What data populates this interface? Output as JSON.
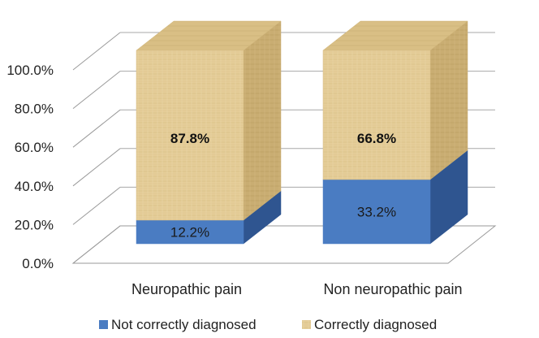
{
  "chart_data": {
    "type": "bar",
    "stacked": true,
    "three_d": true,
    "categories": [
      "Neuropathic pain",
      "Non neuropathic pain"
    ],
    "series": [
      {
        "name": "Not correctly diagnosed",
        "values": [
          12.2,
          33.2
        ],
        "labels": [
          "12.2%",
          "33.2%"
        ],
        "color": "#4a7cc2"
      },
      {
        "name": "Correctly diagnosed",
        "values": [
          87.8,
          66.8
        ],
        "labels": [
          "87.8%",
          "66.8%"
        ],
        "color": "#e7cf9a"
      }
    ],
    "y_ticks": [
      "0.0%",
      "20.0%",
      "40.0%",
      "60.0%",
      "80.0%",
      "100.0%"
    ],
    "ylim": [
      0,
      100
    ],
    "grid": true,
    "legend_position": "bottom"
  }
}
